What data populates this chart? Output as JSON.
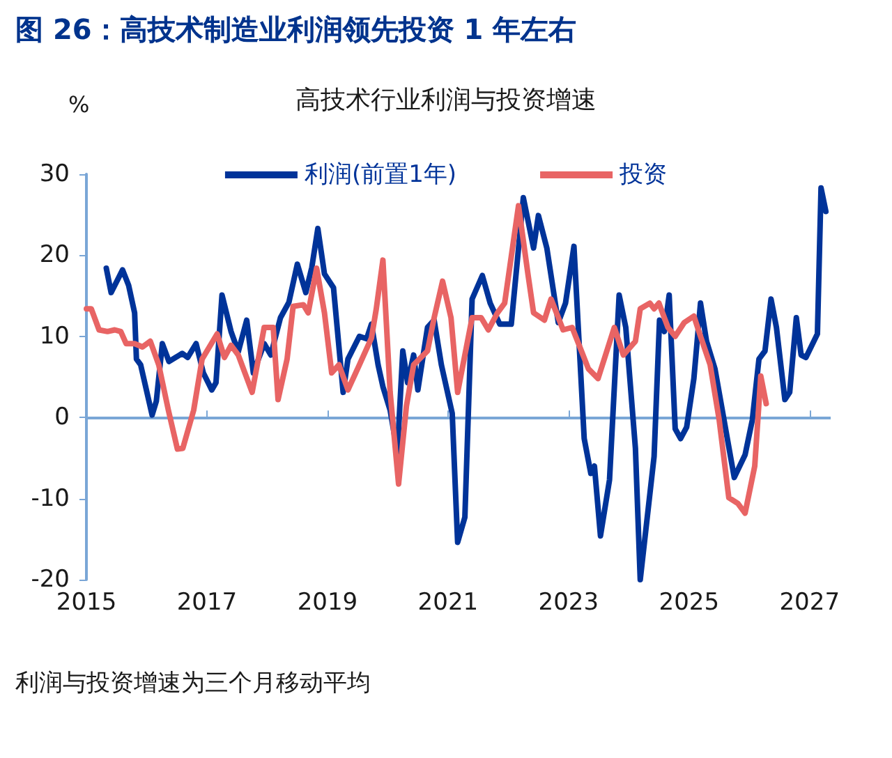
{
  "chart_data": {
    "type": "line",
    "title": "图 26：高技术制造业利润领先投资 1 年左右",
    "subtitle": "高技术行业利润与投资增速",
    "ylabel": "%",
    "annotations": [
      "利润与投资增速为三个月移动平均"
    ],
    "xlim": [
      2015,
      2027.35
    ],
    "xticks": [
      2015,
      2017,
      2019,
      2021,
      2023,
      2025,
      2027
    ],
    "ylim": [
      -20,
      30
    ],
    "yticks": [
      -20,
      -10,
      0,
      10,
      20,
      30
    ],
    "ref_lines": [
      {
        "axis": "y",
        "value": 0,
        "color": "#7aa6d6",
        "line_style": "solid"
      }
    ],
    "grid": false,
    "legend": "top",
    "marker": "none",
    "line_style": "solid",
    "series": [
      {
        "name": "利润(前置1年)",
        "color": "#003399",
        "x": [
          2015.33,
          2015.41,
          2015.6,
          2015.7,
          2015.8,
          2015.83,
          2015.9,
          2016.09,
          2016.16,
          2016.26,
          2016.37,
          2016.59,
          2016.68,
          2016.82,
          2016.94,
          2017.08,
          2017.15,
          2017.25,
          2017.4,
          2017.52,
          2017.66,
          2017.77,
          2017.95,
          2018.06,
          2018.22,
          2018.36,
          2018.5,
          2018.64,
          2018.74,
          2018.84,
          2018.95,
          2019.1,
          2019.26,
          2019.34,
          2019.53,
          2019.65,
          2019.73,
          2019.84,
          2019.92,
          2020.04,
          2020.16,
          2020.25,
          2020.33,
          2020.43,
          2020.5,
          2020.66,
          2020.77,
          2020.89,
          2021.07,
          2021.16,
          2021.28,
          2021.4,
          2021.57,
          2021.7,
          2021.86,
          2022.05,
          2022.25,
          2022.42,
          2022.5,
          2022.64,
          2022.83,
          2022.95,
          2023.09,
          2023.26,
          2023.37,
          2023.43,
          2023.53,
          2023.68,
          2023.84,
          2023.95,
          2024.11,
          2024.19,
          2024.42,
          2024.51,
          2024.59,
          2024.67,
          2024.77,
          2024.86,
          2024.96,
          2025.08,
          2025.19,
          2025.29,
          2025.43,
          2025.58,
          2025.75,
          2025.93,
          2026.05,
          2026.16,
          2026.26,
          2026.36,
          2026.45,
          2026.59,
          2026.67,
          2026.78,
          2026.86,
          2026.94,
          2027.13,
          2027.19,
          2027.27
        ],
        "values": [
          18.4,
          15.4,
          18.2,
          16.3,
          12.9,
          7.2,
          6.5,
          0.3,
          2,
          9.1,
          6.9,
          7.9,
          7.4,
          9.1,
          5.5,
          3.4,
          4.3,
          15.1,
          10.6,
          8.1,
          12,
          5.5,
          9.1,
          7.7,
          12.3,
          14.2,
          18.9,
          15.4,
          18.5,
          23.3,
          17.7,
          16,
          3.1,
          7.2,
          10,
          9.7,
          11.5,
          6.5,
          3.8,
          0.9,
          -4.3,
          8.2,
          4.3,
          7.7,
          3.4,
          11.1,
          12,
          6.5,
          0.5,
          -15.4,
          -12.3,
          14.6,
          17.5,
          14.1,
          11.5,
          11.5,
          27.1,
          20.9,
          24.9,
          20.9,
          11.7,
          14.1,
          21.1,
          -2.6,
          -6.9,
          -6,
          -14.6,
          -7.7,
          15.1,
          11.1,
          -3.8,
          -20,
          -4.8,
          12,
          10.6,
          15.1,
          -1.4,
          -2.6,
          -1.2,
          4.8,
          14.1,
          9.4,
          6,
          -0.3,
          -7.4,
          -4.6,
          -0.3,
          7.2,
          8.2,
          14.6,
          11.1,
          2.2,
          3.1,
          12.3,
          7.7,
          7.4,
          10.3,
          28.3,
          25.4
        ]
      },
      {
        "name": "投资",
        "color": "#e86464",
        "x": [
          2015.0,
          2015.08,
          2015.21,
          2015.35,
          2015.47,
          2015.57,
          2015.66,
          2015.8,
          2015.93,
          2016.06,
          2016.2,
          2016.36,
          2016.51,
          2016.6,
          2016.78,
          2016.92,
          2017.17,
          2017.29,
          2017.4,
          2017.52,
          2017.75,
          2017.95,
          2018.1,
          2018.18,
          2018.33,
          2018.43,
          2018.6,
          2018.68,
          2018.82,
          2018.95,
          2019.07,
          2019.19,
          2019.34,
          2019.53,
          2019.73,
          2019.81,
          2019.92,
          2020.04,
          2020.18,
          2020.31,
          2020.43,
          2020.66,
          2020.77,
          2020.91,
          2021.05,
          2021.16,
          2021.4,
          2021.55,
          2021.67,
          2021.82,
          2021.94,
          2022.17,
          2022.33,
          2022.42,
          2022.6,
          2022.71,
          2022.91,
          2023.06,
          2023.33,
          2023.49,
          2023.76,
          2023.91,
          2024.11,
          2024.19,
          2024.35,
          2024.42,
          2024.5,
          2024.65,
          2024.77,
          2024.92,
          2025.08,
          2025.19,
          2025.35,
          2025.5,
          2025.66,
          2025.81,
          2025.93,
          2026.09,
          2026.19,
          2026.28
        ],
        "values": [
          13.4,
          13.4,
          10.8,
          10.6,
          10.8,
          10.6,
          9.1,
          9.1,
          8.7,
          9.4,
          6.5,
          0.9,
          -3.9,
          -3.8,
          0.9,
          7.2,
          10.3,
          7.4,
          8.9,
          7.7,
          3.1,
          11.1,
          11.1,
          2.2,
          7.2,
          13.7,
          13.9,
          12.9,
          18.4,
          12.9,
          5.5,
          6.5,
          3.4,
          6.5,
          9.8,
          13.4,
          19.4,
          3.1,
          -8.2,
          1.4,
          6.5,
          8.2,
          12.3,
          16.8,
          12.3,
          3.1,
          12.3,
          12.3,
          10.8,
          12.9,
          14.1,
          26.1,
          17.5,
          12.9,
          12,
          14.6,
          10.8,
          11.1,
          6,
          4.8,
          11.1,
          7.7,
          9.4,
          13.4,
          14.1,
          13.4,
          14.1,
          11.1,
          10,
          11.7,
          12.5,
          10,
          6.5,
          -0.3,
          -9.9,
          -10.6,
          -11.8,
          -6,
          5.1,
          1.7
        ]
      }
    ]
  }
}
